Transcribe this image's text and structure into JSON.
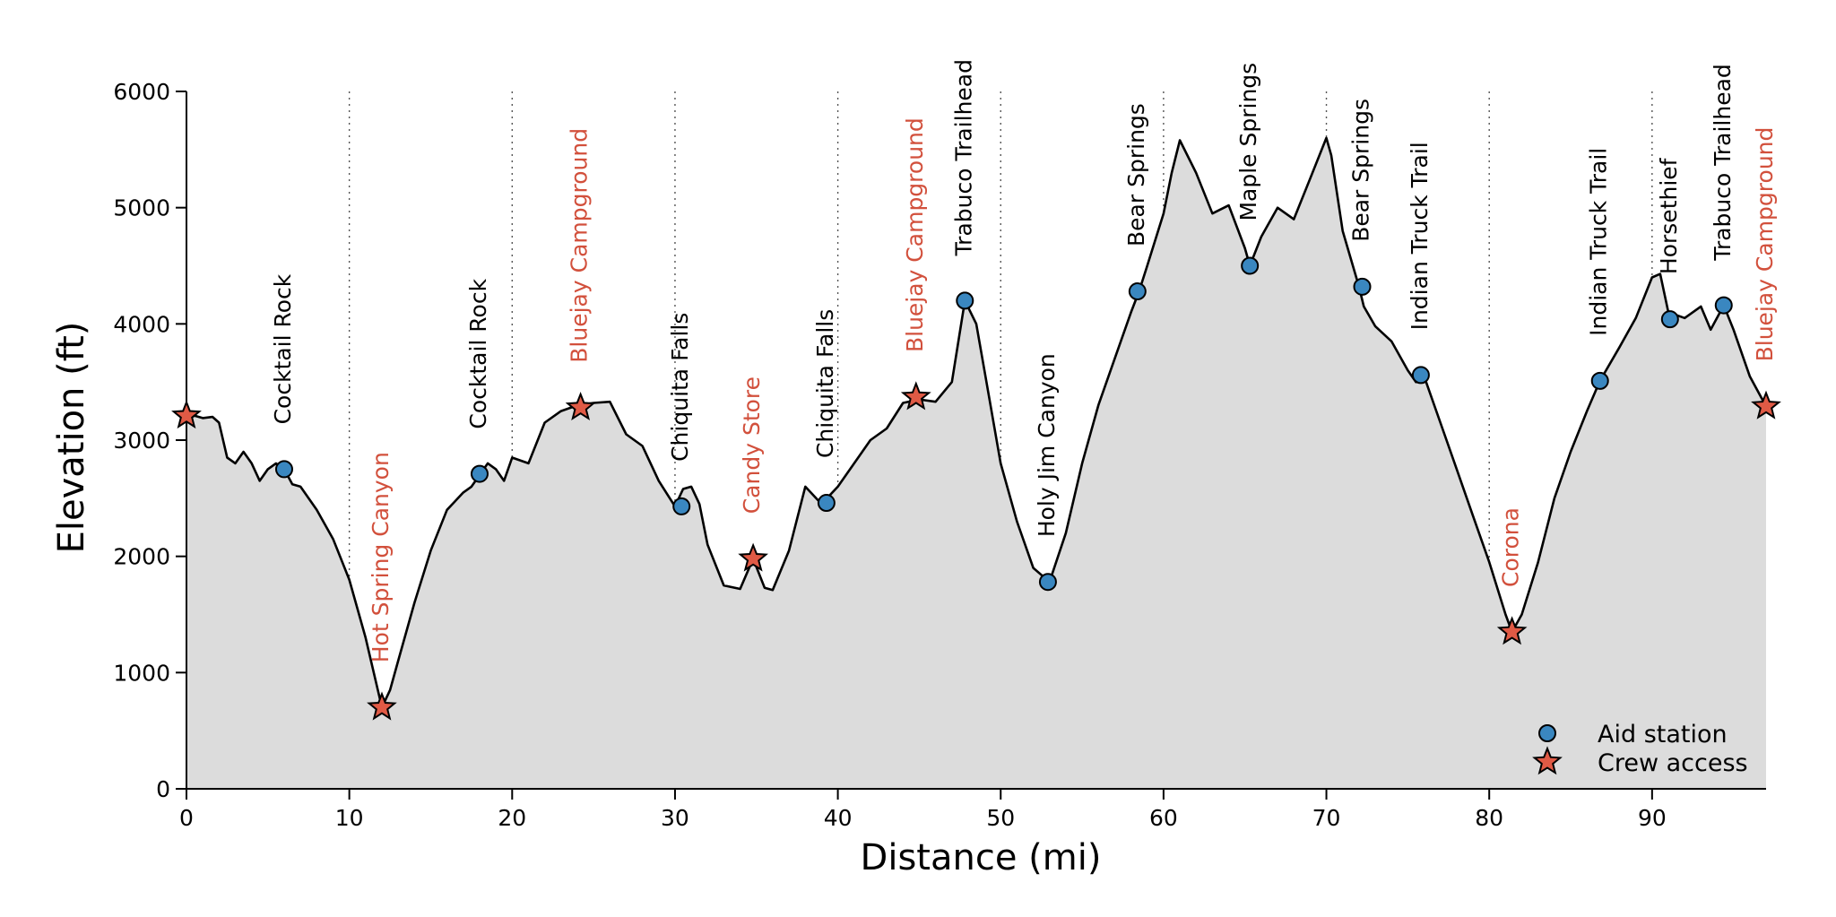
{
  "chart_data": {
    "type": "area",
    "title": "",
    "xlabel": "Distance (mi)",
    "ylabel": "Elevation (ft)",
    "xlim": [
      0,
      97
    ],
    "ylim": [
      0,
      6000
    ],
    "xticks": [
      0,
      10,
      20,
      30,
      40,
      50,
      60,
      70,
      80,
      90
    ],
    "yticks": [
      0,
      1000,
      2000,
      3000,
      4000,
      5000,
      6000
    ],
    "grid": "vertical dotted lines at x ticks",
    "legend_position": "bottom-right",
    "colors": {
      "fill": "#dcdcdc",
      "line": "#000000",
      "aid": "#3a87c0",
      "crew": "#e05a45",
      "crew_label": "#d2503c"
    },
    "profile": {
      "x": [
        0,
        0.5,
        1,
        1.6,
        2,
        2.5,
        3,
        3.5,
        4,
        4.5,
        5,
        5.5,
        6,
        6.5,
        7,
        7.5,
        8,
        9,
        10,
        11,
        12,
        12.5,
        13,
        14,
        15,
        16,
        17,
        17.5,
        18,
        18.5,
        19,
        19.5,
        20,
        21,
        22,
        23,
        24,
        25,
        26,
        27,
        28,
        29,
        30,
        30.5,
        31,
        31.5,
        32,
        33,
        34,
        34.8,
        35.5,
        36,
        37,
        38,
        39,
        40,
        41,
        42,
        43,
        44,
        45,
        46,
        47,
        47.8,
        48.5,
        49,
        50,
        51,
        52,
        53,
        54,
        55,
        56,
        57,
        58,
        58.5,
        59,
        60,
        60.5,
        61,
        62,
        63,
        64,
        65,
        65.3,
        66,
        67,
        68,
        69,
        70,
        70.3,
        71,
        72,
        72.3,
        73,
        74,
        75,
        75.5,
        76,
        77,
        78,
        79,
        80,
        81,
        81.4,
        82,
        83,
        84,
        85,
        86,
        86.8,
        88,
        89,
        90,
        90.5,
        91,
        92,
        93,
        93.6,
        94.4,
        95,
        96,
        97
      ],
      "y": [
        3200,
        3210,
        3190,
        3200,
        3150,
        2850,
        2800,
        2900,
        2800,
        2650,
        2750,
        2800,
        2750,
        2620,
        2600,
        2500,
        2400,
        2150,
        1800,
        1300,
        700,
        850,
        1100,
        1600,
        2050,
        2400,
        2550,
        2600,
        2700,
        2800,
        2750,
        2650,
        2850,
        2800,
        3150,
        3250,
        3300,
        3320,
        3330,
        3050,
        2950,
        2650,
        2430,
        2580,
        2600,
        2450,
        2100,
        1750,
        1720,
        1980,
        1730,
        1710,
        2050,
        2600,
        2450,
        2600,
        2800,
        3000,
        3100,
        3320,
        3350,
        3330,
        3500,
        4200,
        4000,
        3600,
        2800,
        2300,
        1900,
        1780,
        2200,
        2800,
        3300,
        3700,
        4100,
        4280,
        4500,
        4950,
        5300,
        5580,
        5300,
        4950,
        5020,
        4650,
        4500,
        4750,
        5000,
        4900,
        5250,
        5600,
        5450,
        4800,
        4320,
        4150,
        3980,
        3850,
        3600,
        3500,
        3550,
        3150,
        2750,
        2350,
        1950,
        1500,
        1350,
        1500,
        1950,
        2500,
        2900,
        3250,
        3510,
        3800,
        4050,
        4400,
        4430,
        4100,
        4050,
        4150,
        3950,
        4160,
        3950,
        3550,
        3290
      ]
    },
    "aid_stations": [
      {
        "x": 6,
        "y": 2750,
        "name": "Cocktail Rock"
      },
      {
        "x": 18,
        "y": 2710,
        "name": "Cocktail Rock"
      },
      {
        "x": 30.4,
        "y": 2430,
        "name": "Chiquita Falls"
      },
      {
        "x": 39.3,
        "y": 2460,
        "name": "Chiquita Falls"
      },
      {
        "x": 47.8,
        "y": 4200,
        "name": "Trabuco Trailhead"
      },
      {
        "x": 52.9,
        "y": 1780,
        "name": "Holy Jim Canyon"
      },
      {
        "x": 58.4,
        "y": 4280,
        "name": "Bear Springs"
      },
      {
        "x": 65.3,
        "y": 4500,
        "name": "Maple Springs"
      },
      {
        "x": 72.2,
        "y": 4320,
        "name": "Bear Springs"
      },
      {
        "x": 75.8,
        "y": 3560,
        "name": "Indian Truck Trail"
      },
      {
        "x": 86.8,
        "y": 3510,
        "name": "Indian Truck Trail"
      },
      {
        "x": 91.1,
        "y": 4040,
        "name": "Horsethief"
      },
      {
        "x": 94.4,
        "y": 4160,
        "name": "Trabuco Trailhead"
      }
    ],
    "crew_access": [
      {
        "x": 0,
        "y": 3210,
        "name": ""
      },
      {
        "x": 12,
        "y": 700,
        "name": "Hot Spring Canyon"
      },
      {
        "x": 24.2,
        "y": 3280,
        "name": "Bluejay Campground"
      },
      {
        "x": 34.8,
        "y": 1980,
        "name": "Candy Store"
      },
      {
        "x": 44.8,
        "y": 3370,
        "name": "Bluejay Campground"
      },
      {
        "x": 81.4,
        "y": 1350,
        "name": "Corona"
      },
      {
        "x": 97,
        "y": 3290,
        "name": "Bluejay Campground"
      }
    ],
    "legend": [
      {
        "marker": "circle",
        "label": "Aid station"
      },
      {
        "marker": "star",
        "label": "Crew access"
      }
    ]
  }
}
